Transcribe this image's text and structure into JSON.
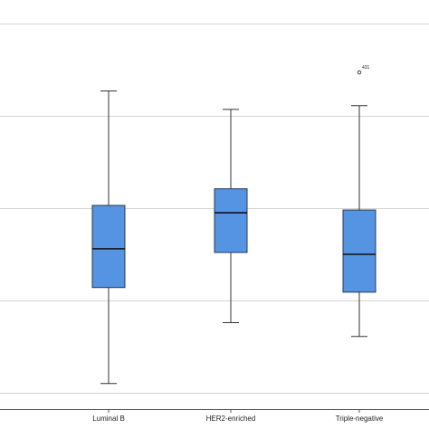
{
  "chart_data": {
    "type": "box",
    "title": "",
    "xlabel": "",
    "ylabel": "",
    "categories": [
      "Luminal B",
      "HER2-enriched",
      "Triple-negative"
    ],
    "boxes": [
      {
        "category": "Luminal B",
        "whisker_low": 0.1,
        "q1": 1.14,
        "median": 1.56,
        "q3": 2.03,
        "whisker_high": 3.27
      },
      {
        "category": "HER2-enriched",
        "whisker_low": 0.76,
        "q1": 1.52,
        "median": 1.95,
        "q3": 2.21,
        "whisker_high": 3.07
      },
      {
        "category": "Triple-negative",
        "whisker_low": 0.61,
        "q1": 1.09,
        "median": 1.5,
        "q3": 1.98,
        "whisker_high": 3.11
      }
    ],
    "outliers": [
      {
        "category": "Triple-negative",
        "value": 3.47,
        "label": "431"
      }
    ],
    "ylim": [
      0,
      4
    ],
    "gridlines": [
      0,
      1,
      2,
      3,
      4
    ],
    "grid": true,
    "legend": "none",
    "colors": {
      "box_fill": "#5593e3",
      "box_stroke": "#2b3a55",
      "median": "#111111",
      "whisker": "#333333",
      "gridline": "#d3d3d3",
      "axis": "#555555"
    }
  }
}
